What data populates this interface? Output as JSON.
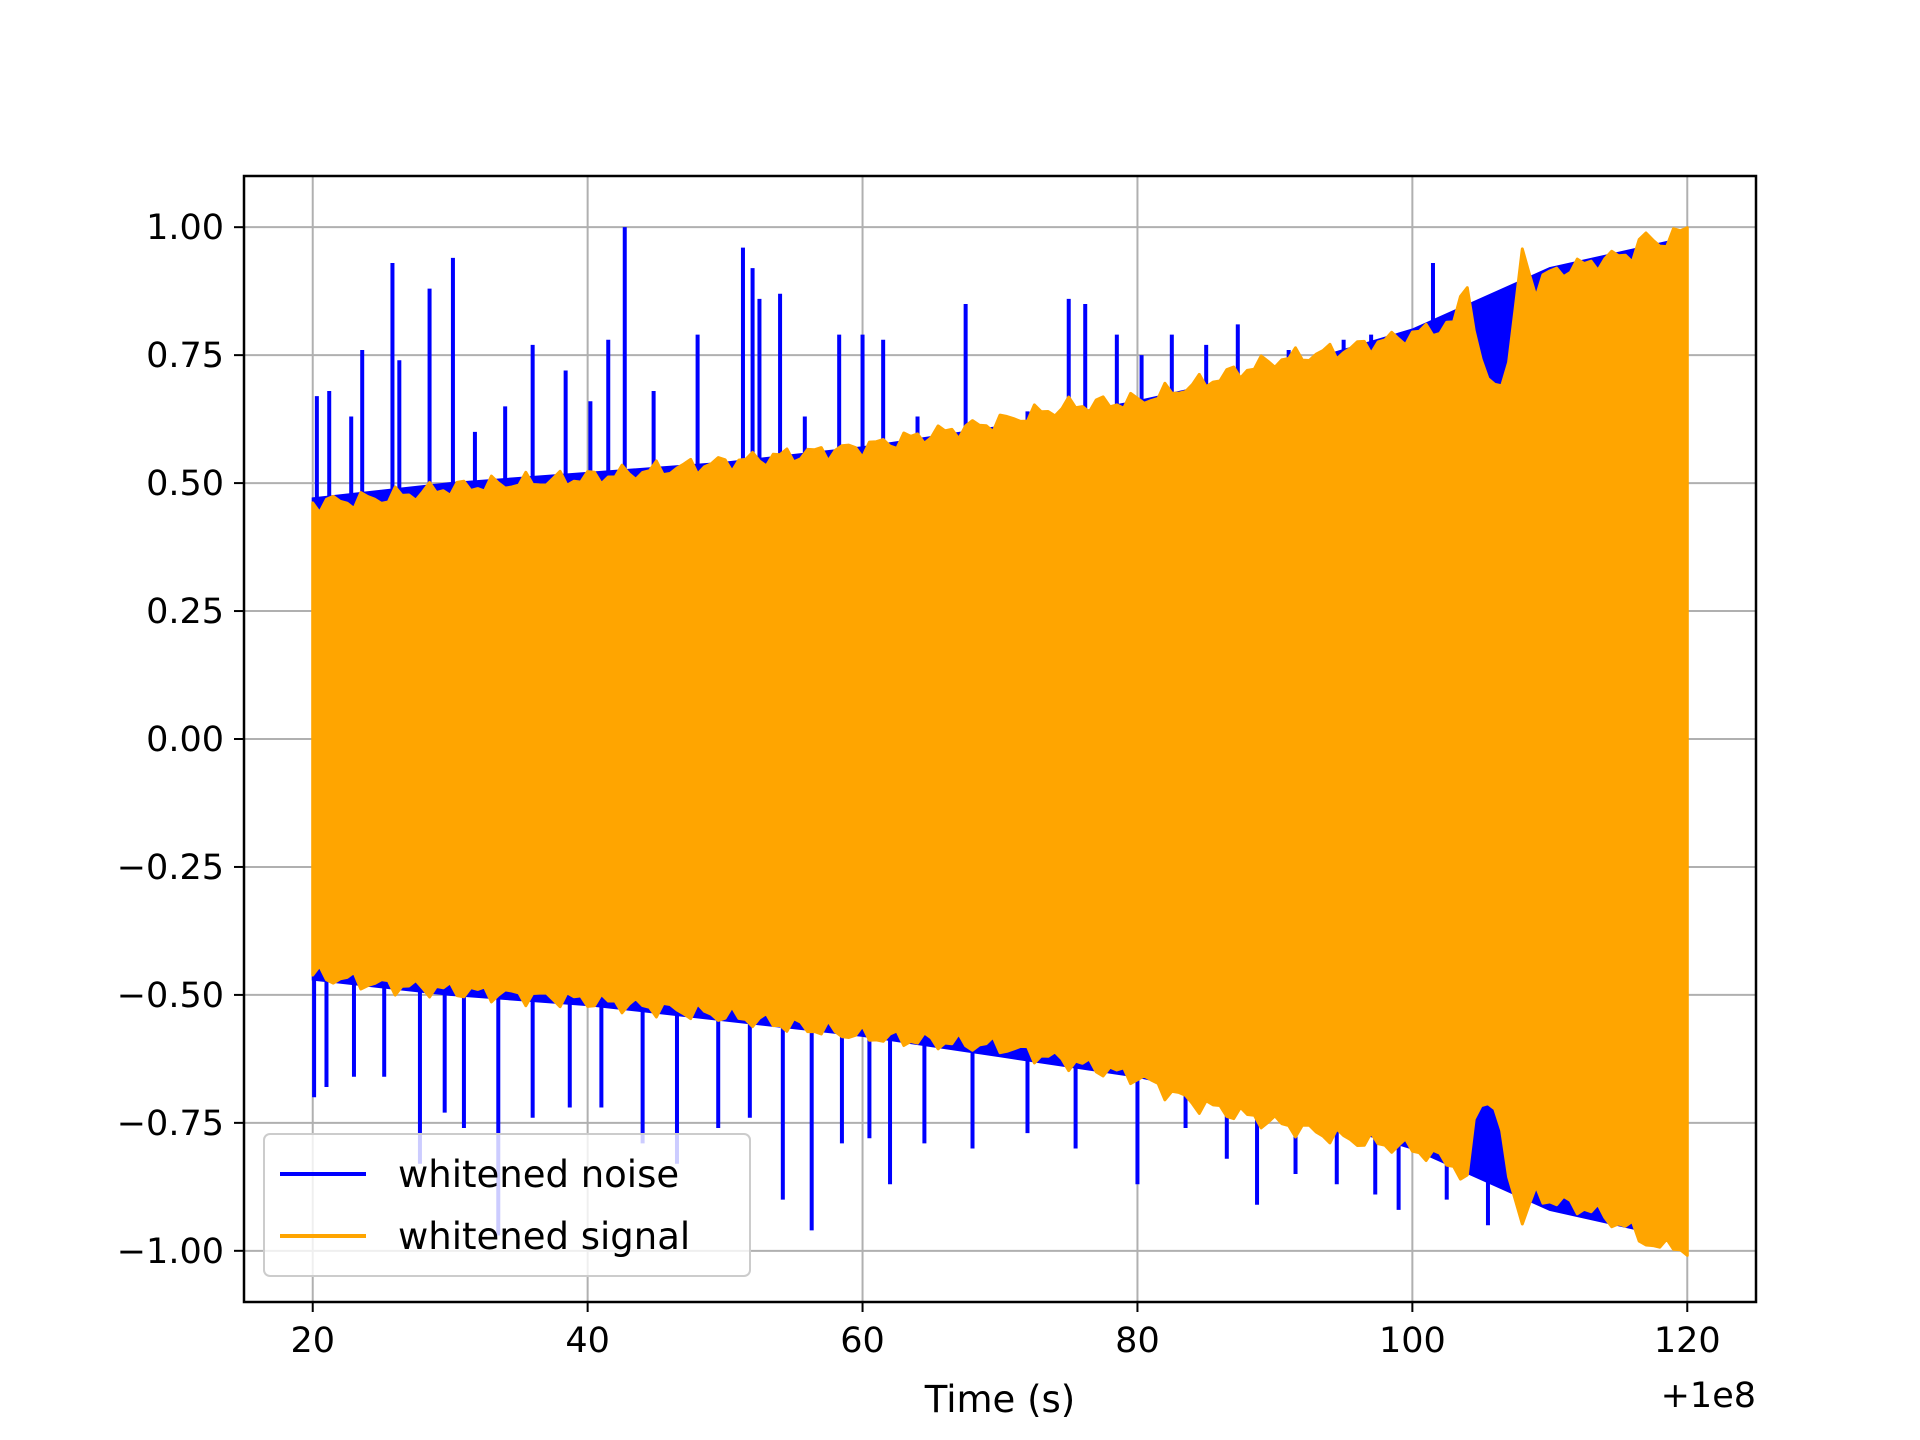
{
  "chart_data": {
    "type": "line",
    "title": "",
    "xlabel": "Time (s)",
    "ylabel": "",
    "x_offset_label": "+1e8",
    "xlim": [
      15,
      125
    ],
    "ylim": [
      -1.1,
      1.1
    ],
    "x_ticks": [
      20,
      40,
      60,
      80,
      100,
      120
    ],
    "x_tick_labels": [
      "20",
      "40",
      "60",
      "80",
      "100",
      "120"
    ],
    "y_ticks": [
      1.0,
      0.75,
      0.5,
      0.25,
      0.0,
      -0.25,
      -0.5,
      -0.75,
      -1.0
    ],
    "y_tick_labels": [
      "1.00",
      "0.75",
      "0.50",
      "0.25",
      "0.00",
      "−0.25",
      "−0.50",
      "−0.75",
      "−1.00"
    ],
    "grid": true,
    "legend_position": "lower-left",
    "series": [
      {
        "name": "whitened noise",
        "color": "#0000ff",
        "x_range": [
          20,
          120
        ],
        "envelope": {
          "x": [
            20,
            30,
            40,
            50,
            60,
            70,
            80,
            90,
            100,
            110,
            120
          ],
          "upper": [
            0.47,
            0.5,
            0.52,
            0.54,
            0.57,
            0.61,
            0.66,
            0.72,
            0.8,
            0.92,
            0.98
          ],
          "lower": [
            -0.47,
            -0.5,
            -0.52,
            -0.55,
            -0.58,
            -0.62,
            -0.66,
            -0.72,
            -0.8,
            -0.92,
            -0.98
          ]
        },
        "spikes_up": [
          {
            "x": 20.3,
            "y": 0.67
          },
          {
            "x": 21.2,
            "y": 0.68
          },
          {
            "x": 22.8,
            "y": 0.63
          },
          {
            "x": 23.6,
            "y": 0.76
          },
          {
            "x": 25.8,
            "y": 0.93
          },
          {
            "x": 26.3,
            "y": 0.74
          },
          {
            "x": 28.5,
            "y": 0.88
          },
          {
            "x": 30.2,
            "y": 0.94
          },
          {
            "x": 31.8,
            "y": 0.6
          },
          {
            "x": 34.0,
            "y": 0.65
          },
          {
            "x": 36.0,
            "y": 0.77
          },
          {
            "x": 38.4,
            "y": 0.72
          },
          {
            "x": 40.2,
            "y": 0.66
          },
          {
            "x": 41.5,
            "y": 0.78
          },
          {
            "x": 42.7,
            "y": 1.0
          },
          {
            "x": 44.8,
            "y": 0.68
          },
          {
            "x": 48.0,
            "y": 0.79
          },
          {
            "x": 51.3,
            "y": 0.96
          },
          {
            "x": 52.0,
            "y": 0.92
          },
          {
            "x": 52.5,
            "y": 0.86
          },
          {
            "x": 54.0,
            "y": 0.87
          },
          {
            "x": 55.8,
            "y": 0.63
          },
          {
            "x": 58.3,
            "y": 0.79
          },
          {
            "x": 60.0,
            "y": 0.79
          },
          {
            "x": 61.5,
            "y": 0.78
          },
          {
            "x": 64.0,
            "y": 0.63
          },
          {
            "x": 67.5,
            "y": 0.85
          },
          {
            "x": 72.0,
            "y": 0.64
          },
          {
            "x": 75.0,
            "y": 0.86
          },
          {
            "x": 76.2,
            "y": 0.85
          },
          {
            "x": 78.5,
            "y": 0.79
          },
          {
            "x": 80.3,
            "y": 0.75
          },
          {
            "x": 82.5,
            "y": 0.79
          },
          {
            "x": 85.0,
            "y": 0.77
          },
          {
            "x": 87.3,
            "y": 0.81
          },
          {
            "x": 91.0,
            "y": 0.76
          },
          {
            "x": 95.0,
            "y": 0.78
          },
          {
            "x": 97.0,
            "y": 0.79
          },
          {
            "x": 101.5,
            "y": 0.93
          },
          {
            "x": 102.8,
            "y": 0.82
          },
          {
            "x": 110.3,
            "y": 0.92
          }
        ],
        "spikes_down": [
          {
            "x": 20.1,
            "y": -0.7
          },
          {
            "x": 21.0,
            "y": -0.68
          },
          {
            "x": 23.0,
            "y": -0.66
          },
          {
            "x": 25.2,
            "y": -0.66
          },
          {
            "x": 27.8,
            "y": -0.83
          },
          {
            "x": 29.6,
            "y": -0.73
          },
          {
            "x": 31.0,
            "y": -0.76
          },
          {
            "x": 33.5,
            "y": -0.97
          },
          {
            "x": 36.0,
            "y": -0.74
          },
          {
            "x": 38.7,
            "y": -0.72
          },
          {
            "x": 41.0,
            "y": -0.72
          },
          {
            "x": 44.0,
            "y": -0.79
          },
          {
            "x": 46.5,
            "y": -0.83
          },
          {
            "x": 49.5,
            "y": -0.76
          },
          {
            "x": 51.8,
            "y": -0.74
          },
          {
            "x": 54.2,
            "y": -0.9
          },
          {
            "x": 56.3,
            "y": -0.96
          },
          {
            "x": 58.5,
            "y": -0.79
          },
          {
            "x": 60.5,
            "y": -0.78
          },
          {
            "x": 62.0,
            "y": -0.87
          },
          {
            "x": 64.5,
            "y": -0.79
          },
          {
            "x": 68.0,
            "y": -0.8
          },
          {
            "x": 72.0,
            "y": -0.77
          },
          {
            "x": 75.5,
            "y": -0.8
          },
          {
            "x": 80.0,
            "y": -0.87
          },
          {
            "x": 83.5,
            "y": -0.76
          },
          {
            "x": 86.5,
            "y": -0.82
          },
          {
            "x": 88.7,
            "y": -0.91
          },
          {
            "x": 91.5,
            "y": -0.85
          },
          {
            "x": 94.5,
            "y": -0.87
          },
          {
            "x": 97.3,
            "y": -0.89
          },
          {
            "x": 99.0,
            "y": -0.92
          },
          {
            "x": 102.5,
            "y": -0.9
          },
          {
            "x": 105.5,
            "y": -0.95
          }
        ]
      },
      {
        "name": "whitened signal",
        "color": "#ffa500",
        "x_range": [
          20,
          120
        ],
        "envelope": {
          "x": [
            20,
            25,
            30,
            40,
            50,
            60,
            70,
            75,
            80,
            84,
            90,
            95,
            100,
            103,
            104,
            104.6,
            105.3,
            106,
            107,
            108,
            109,
            110,
            113,
            116,
            117,
            118,
            119,
            120
          ],
          "upper": [
            0.46,
            0.47,
            0.49,
            0.51,
            0.54,
            0.57,
            0.62,
            0.65,
            0.66,
            0.69,
            0.74,
            0.76,
            0.79,
            0.81,
            0.9,
            0.78,
            0.7,
            0.69,
            0.73,
            0.95,
            0.88,
            0.91,
            0.93,
            0.95,
            0.98,
            0.97,
            0.98,
            1.0
          ],
          "lower": [
            -0.46,
            -0.48,
            -0.49,
            -0.51,
            -0.54,
            -0.58,
            -0.6,
            -0.63,
            -0.66,
            -0.71,
            -0.75,
            -0.78,
            -0.8,
            -0.83,
            -0.87,
            -0.72,
            -0.7,
            -0.72,
            -0.85,
            -0.94,
            -0.89,
            -0.9,
            -0.92,
            -0.96,
            -0.98,
            -1.0,
            -0.98,
            -1.01
          ]
        }
      }
    ]
  }
}
